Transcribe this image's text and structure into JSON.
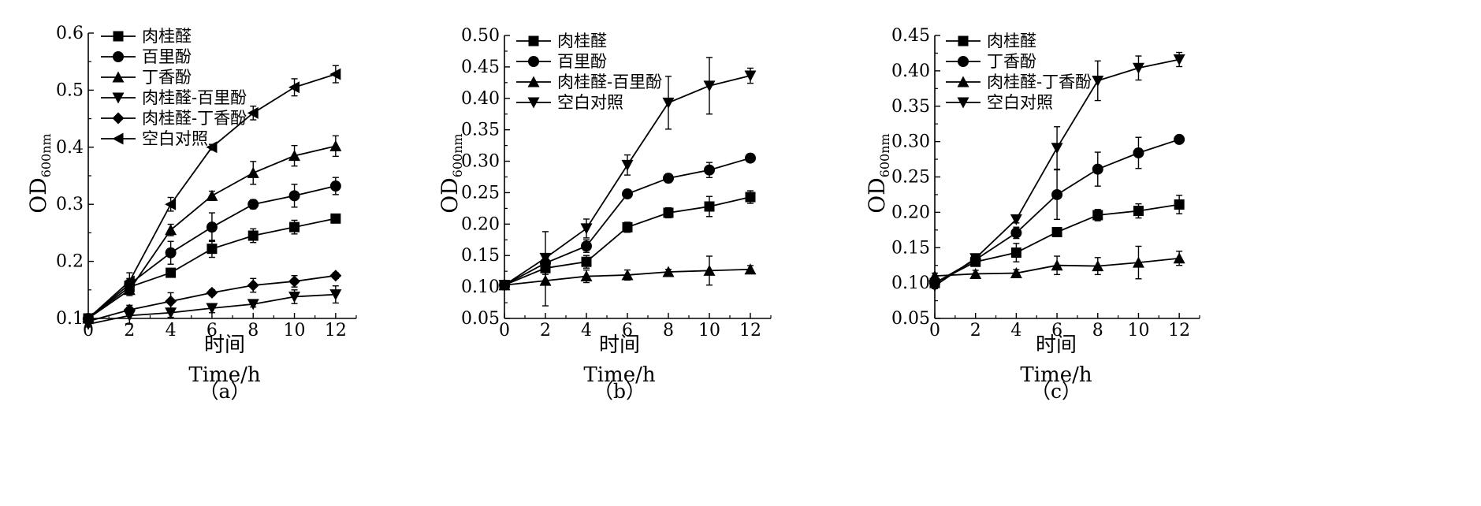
{
  "chart_data": [
    {
      "type": "line",
      "caption": "（a）",
      "ylabel_main": "OD",
      "ylabel_sub": "600nm",
      "xlabel_cn": "时间",
      "xlabel_en": "Time/h",
      "x": [
        0,
        2,
        4,
        6,
        8,
        10,
        12
      ],
      "xlim": [
        0,
        13
      ],
      "ylim": [
        0.1,
        0.6
      ],
      "yticks": [
        "0.1",
        "0.2",
        "0.3",
        "0.4",
        "0.5",
        "0.6"
      ],
      "xticks": [
        "0",
        "2",
        "4",
        "6",
        "8",
        "10",
        "12"
      ],
      "legend_position": "top-left",
      "series": [
        {
          "name": "肉桂醛",
          "marker": "square",
          "values": [
            0.1,
            0.155,
            0.18,
            0.222,
            0.245,
            0.26,
            0.275
          ],
          "errors": [
            0.005,
            0.01,
            0.005,
            0.015,
            0.012,
            0.012,
            0.005
          ]
        },
        {
          "name": "百里酚",
          "marker": "circle",
          "values": [
            0.1,
            0.16,
            0.215,
            0.26,
            0.3,
            0.315,
            0.332
          ],
          "errors": [
            0.005,
            0.01,
            0.02,
            0.025,
            0.008,
            0.02,
            0.015
          ]
        },
        {
          "name": "丁香酚",
          "marker": "triangle-up",
          "values": [
            0.1,
            0.15,
            0.255,
            0.315,
            0.355,
            0.385,
            0.402
          ],
          "errors": [
            0.005,
            0.01,
            0.01,
            0.008,
            0.02,
            0.018,
            0.018
          ]
        },
        {
          "name": "肉桂醛-百里酚",
          "marker": "triangle-down",
          "values": [
            0.09,
            0.105,
            0.11,
            0.118,
            0.125,
            0.138,
            0.142
          ],
          "errors": [
            0.005,
            0.015,
            0.008,
            0.008,
            0.005,
            0.012,
            0.015
          ]
        },
        {
          "name": "肉桂醛-丁香酚",
          "marker": "diamond",
          "values": [
            0.095,
            0.115,
            0.13,
            0.145,
            0.158,
            0.165,
            0.175
          ],
          "errors": [
            0.005,
            0.008,
            0.015,
            0.005,
            0.012,
            0.01,
            0.005
          ]
        },
        {
          "name": "空白对照",
          "marker": "triangle-left",
          "values": [
            0.1,
            0.165,
            0.3,
            0.4,
            0.46,
            0.505,
            0.528
          ],
          "errors": [
            0.005,
            0.015,
            0.012,
            0.005,
            0.012,
            0.015,
            0.015
          ]
        }
      ]
    },
    {
      "type": "line",
      "caption": "（b）",
      "ylabel_main": "OD",
      "ylabel_sub": "600nm",
      "xlabel_cn": "时间",
      "xlabel_en": "Time/h",
      "x": [
        0,
        2,
        4,
        6,
        8,
        10,
        12
      ],
      "xlim": [
        0,
        13
      ],
      "ylim": [
        0.05,
        0.5
      ],
      "yticks": [
        "0.05",
        "0.10",
        "0.15",
        "0.20",
        "0.25",
        "0.30",
        "0.35",
        "0.40",
        "0.45",
        "0.50"
      ],
      "xticks": [
        "0",
        "2",
        "4",
        "6",
        "8",
        "10",
        "12"
      ],
      "legend_position": "top-left",
      "series": [
        {
          "name": "肉桂醛",
          "marker": "square",
          "values": [
            0.103,
            0.13,
            0.14,
            0.195,
            0.218,
            0.228,
            0.243
          ],
          "errors": [
            0.003,
            0.01,
            0.01,
            0.008,
            0.008,
            0.016,
            0.01
          ]
        },
        {
          "name": "百里酚",
          "marker": "circle",
          "values": [
            0.103,
            0.138,
            0.165,
            0.248,
            0.273,
            0.286,
            0.305
          ],
          "errors": [
            0.003,
            0.01,
            0.01,
            0.005,
            0.007,
            0.012,
            0.006
          ]
        },
        {
          "name": "肉桂醛-百里酚",
          "marker": "triangle-up",
          "values": [
            0.103,
            0.11,
            0.117,
            0.119,
            0.124,
            0.126,
            0.128
          ],
          "errors": [
            0.003,
            0.04,
            0.01,
            0.008,
            0.004,
            0.023,
            0.006
          ]
        },
        {
          "name": "空白对照",
          "marker": "triangle-down",
          "values": [
            0.103,
            0.146,
            0.193,
            0.294,
            0.393,
            0.42,
            0.436
          ],
          "errors": [
            0.003,
            0.042,
            0.015,
            0.016,
            0.042,
            0.045,
            0.012
          ]
        }
      ]
    },
    {
      "type": "line",
      "caption": "（c）",
      "ylabel_main": "OD",
      "ylabel_sub": "600nm",
      "xlabel_cn": "时间",
      "xlabel_en": "Time/h",
      "x": [
        0,
        2,
        4,
        6,
        8,
        10,
        12
      ],
      "xlim": [
        0,
        13
      ],
      "ylim": [
        0.05,
        0.45
      ],
      "yticks": [
        "0.05",
        "0.10",
        "0.15",
        "0.20",
        "0.25",
        "0.30",
        "0.35",
        "0.40",
        "0.45"
      ],
      "xticks": [
        "0",
        "2",
        "4",
        "6",
        "8",
        "10",
        "12"
      ],
      "legend_position": "top-left",
      "series": [
        {
          "name": "肉桂醛",
          "marker": "square",
          "values": [
            0.1,
            0.13,
            0.143,
            0.172,
            0.196,
            0.202,
            0.211
          ],
          "errors": [
            0.004,
            0.006,
            0.013,
            0.005,
            0.008,
            0.01,
            0.013
          ]
        },
        {
          "name": "丁香酚",
          "marker": "circle",
          "values": [
            0.1,
            0.133,
            0.171,
            0.225,
            0.261,
            0.284,
            0.303
          ],
          "errors": [
            0.004,
            0.006,
            0.008,
            0.035,
            0.024,
            0.022,
            0.004
          ]
        },
        {
          "name": "肉桂醛-丁香酚",
          "marker": "triangle-up",
          "values": [
            0.11,
            0.113,
            0.114,
            0.125,
            0.124,
            0.129,
            0.135
          ],
          "errors": [
            0.004,
            0.005,
            0.005,
            0.013,
            0.012,
            0.023,
            0.01
          ]
        },
        {
          "name": "空白对照",
          "marker": "triangle-down",
          "values": [
            0.096,
            0.135,
            0.19,
            0.291,
            0.386,
            0.404,
            0.416
          ],
          "errors": [
            0.004,
            0.006,
            0.005,
            0.03,
            0.028,
            0.017,
            0.01
          ]
        }
      ]
    }
  ]
}
